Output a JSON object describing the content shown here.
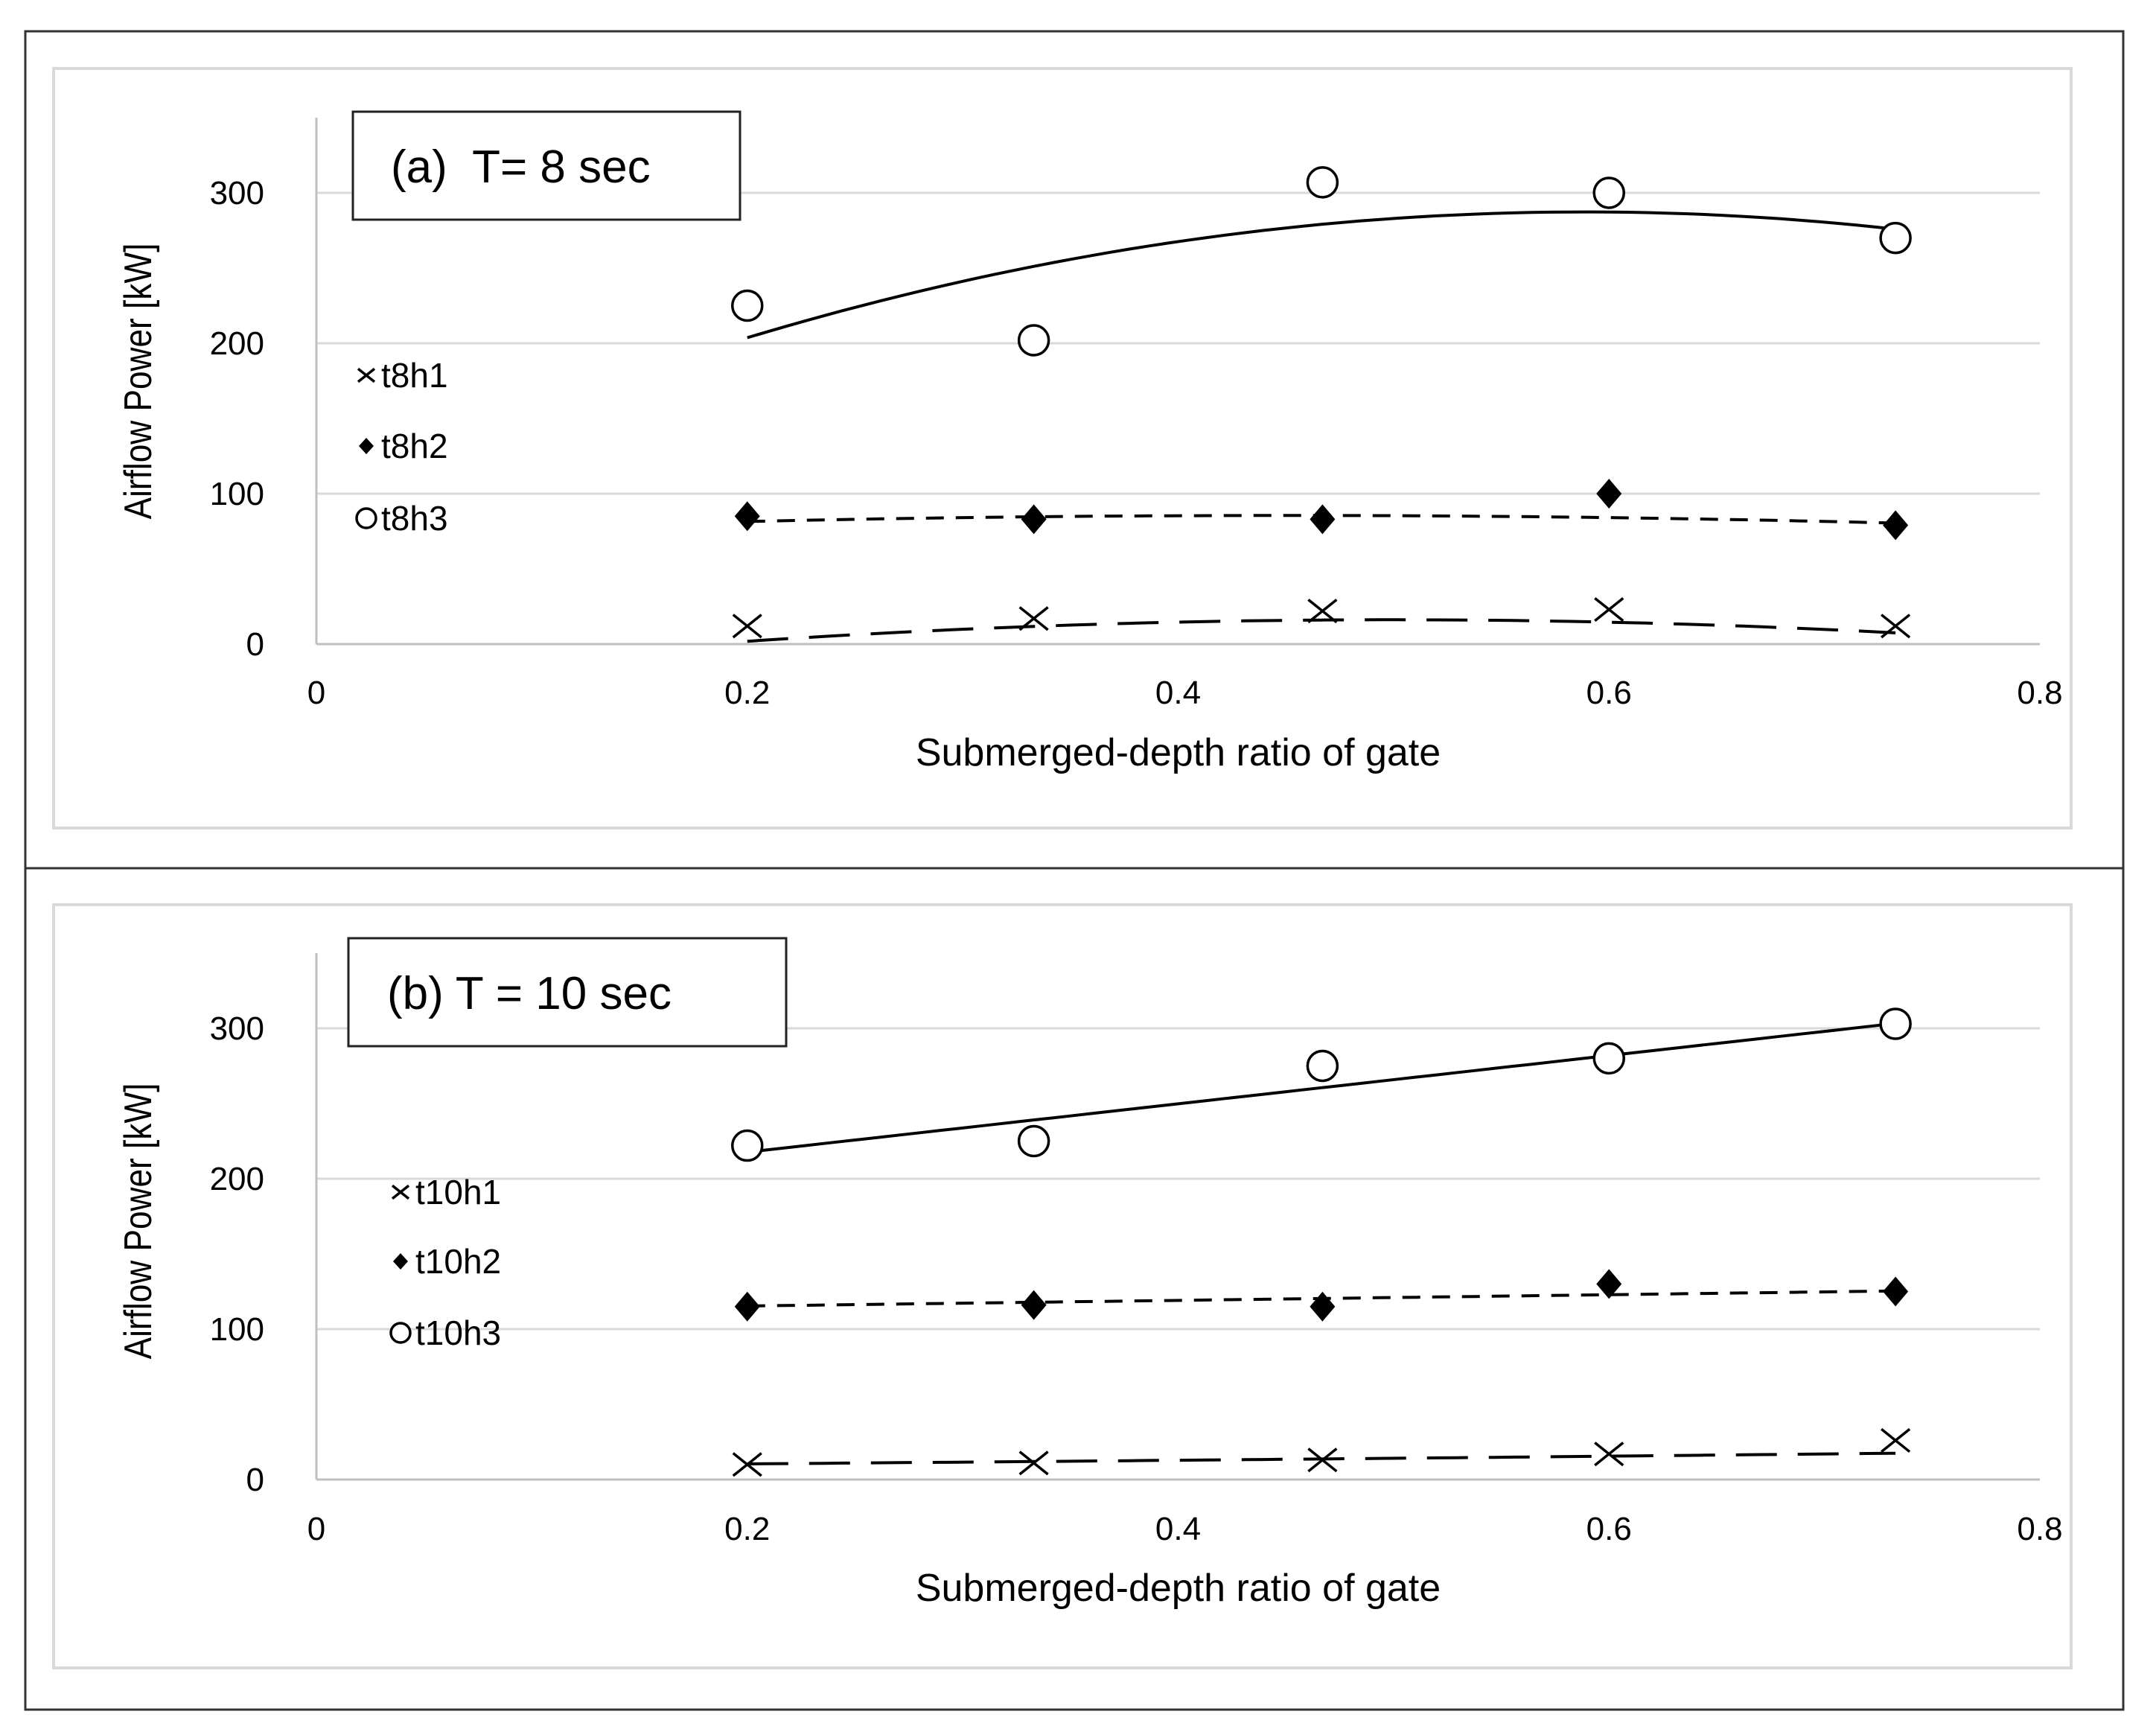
{
  "chart_data": [
    {
      "type": "scatter",
      "title": "(a)  T= 8 sec",
      "xlabel": "Submerged-depth ratio of gate",
      "ylabel": "Airflow Power [kW]",
      "xlim": [
        0,
        0.8
      ],
      "ylim": [
        0,
        350
      ],
      "xticks": [
        "0",
        "0.2",
        "0.4",
        "0.6",
        "0.8"
      ],
      "yticks": [
        "0",
        "100",
        "200",
        "300"
      ],
      "grid": true,
      "legend_position": "left",
      "series": [
        {
          "name": "t8h1",
          "marker": "x",
          "trend": "long-dash",
          "x": [
            0.2,
            0.333,
            0.467,
            0.6,
            0.733
          ],
          "y": [
            12,
            17,
            22,
            23,
            12
          ]
        },
        {
          "name": "t8h2",
          "marker": "diamond",
          "trend": "short-dash",
          "x": [
            0.2,
            0.333,
            0.467,
            0.6,
            0.733
          ],
          "y": [
            85,
            83,
            83,
            100,
            79
          ]
        },
        {
          "name": "t8h3",
          "marker": "circle",
          "trend": "solid",
          "x": [
            0.2,
            0.333,
            0.467,
            0.6,
            0.733
          ],
          "y": [
            225,
            202,
            307,
            300,
            270
          ]
        }
      ],
      "trendlines": [
        {
          "series": "t8h1",
          "coef": [
            -23.6,
            159.3,
            -159.5
          ]
        },
        {
          "series": "t8h2",
          "coef": [
            72.6,
            57.3,
            -63.6
          ]
        },
        {
          "series": "t8h3",
          "coef": [
            95.6,
            651.1,
            -552.8
          ]
        }
      ]
    },
    {
      "type": "scatter",
      "title": "(b) T = 10 sec",
      "xlabel": "Submerged-depth ratio of gate",
      "ylabel": "Airflow Power [kW]",
      "xlim": [
        0,
        0.8
      ],
      "ylim": [
        0,
        350
      ],
      "xticks": [
        "0",
        "0.2",
        "0.4",
        "0.6",
        "0.8"
      ],
      "yticks": [
        "0",
        "100",
        "200",
        "300"
      ],
      "grid": true,
      "legend_position": "left",
      "series": [
        {
          "name": "t10h1",
          "marker": "x",
          "trend": "long-dash",
          "x": [
            0.2,
            0.333,
            0.467,
            0.6,
            0.733
          ],
          "y": [
            10,
            11,
            13,
            17,
            26
          ]
        },
        {
          "name": "t10h2",
          "marker": "diamond",
          "trend": "short-dash",
          "x": [
            0.2,
            0.333,
            0.467,
            0.6,
            0.733
          ],
          "y": [
            115,
            116,
            115,
            130,
            125
          ]
        },
        {
          "name": "t10h3",
          "marker": "circle",
          "trend": "solid",
          "x": [
            0.2,
            0.333,
            0.467,
            0.6,
            0.733
          ],
          "y": [
            222,
            225,
            275,
            280,
            303
          ]
        }
      ],
      "trendlines": [
        {
          "series": "t10h1",
          "coef": [
            8.3,
            9.8,
            3.75
          ]
        },
        {
          "series": "t10h2",
          "coef": [
            111.6,
            18.8,
            0
          ]
        },
        {
          "series": "t10h3",
          "coef": [
            185.6,
            160.5,
            0
          ]
        }
      ]
    }
  ]
}
